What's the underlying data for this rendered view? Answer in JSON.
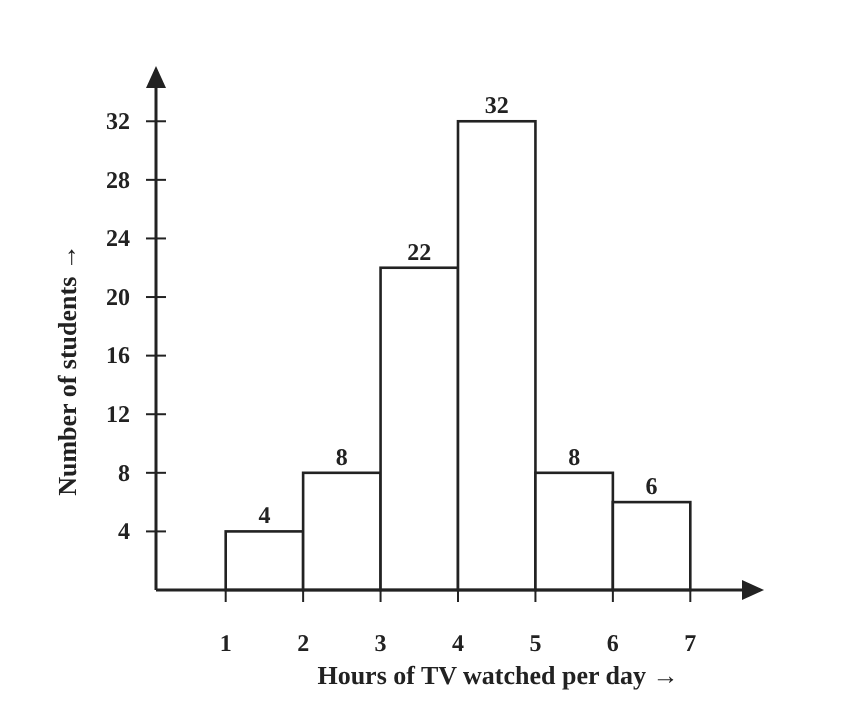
{
  "chart_data": {
    "type": "histogram",
    "xlabel": "Hours of TV watched per day →",
    "ylabel": "Number of students →",
    "bins": [
      1,
      2,
      3,
      4,
      5,
      6,
      7
    ],
    "values": [
      4,
      8,
      22,
      32,
      8,
      6
    ],
    "color": "#ffffff",
    "xlim": [
      0.1,
      7.9
    ],
    "xticks": [
      1,
      2,
      3,
      4,
      5,
      6,
      7
    ],
    "ylim": [
      0,
      35.5
    ],
    "yticks": [
      4,
      8,
      12,
      16,
      20,
      24,
      28,
      32
    ],
    "data_labels": true,
    "grid": false
  }
}
